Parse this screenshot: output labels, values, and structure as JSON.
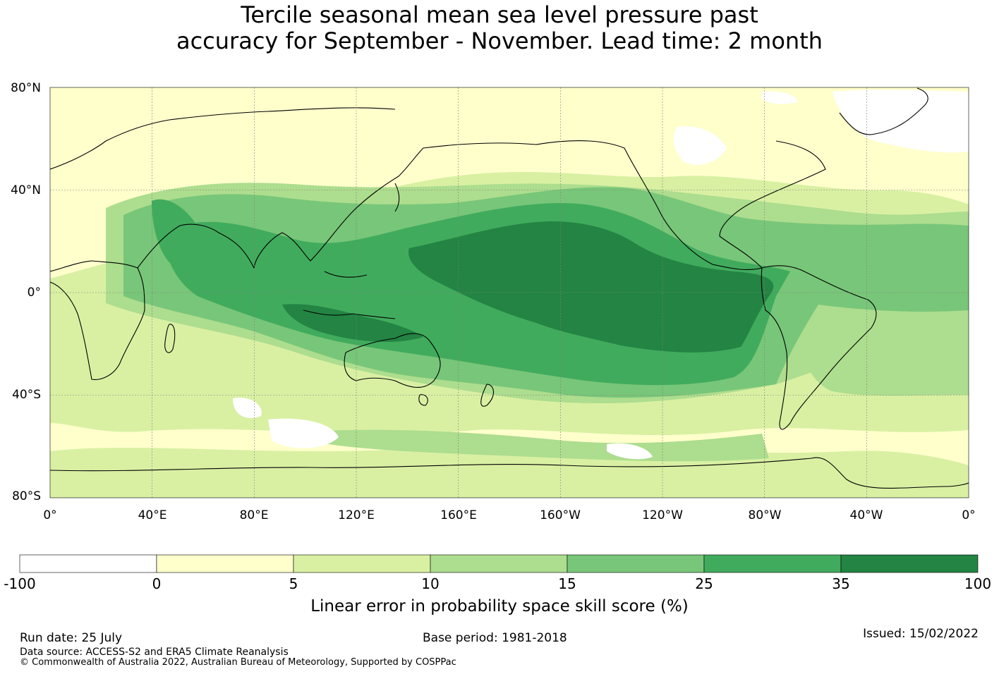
{
  "title": {
    "line1": "Tercile seasonal mean sea level pressure past",
    "line2": "accuracy for September - November. Lead time: 2 month"
  },
  "map": {
    "lat_labels": [
      "80°N",
      "40°N",
      "0°",
      "40°S",
      "80°S"
    ],
    "lon_labels": [
      "0°",
      "40°E",
      "80°E",
      "120°E",
      "160°E",
      "160°W",
      "120°W",
      "80°W",
      "40°W",
      "0°"
    ],
    "ocean_color": "#ffffcc",
    "land_outline_color": "#000000",
    "gridline_color": "#808080"
  },
  "colorbar": {
    "title": "Linear error in probability space skill score (%)",
    "bounds": [
      "-100",
      "0",
      "5",
      "10",
      "15",
      "25",
      "35",
      "100"
    ],
    "colors": [
      "#ffffff",
      "#ffffcc",
      "#d9f0a3",
      "#addd8e",
      "#78c679",
      "#41ab5d",
      "#238443"
    ]
  },
  "footer": {
    "run_date": "Run date: 25 July",
    "base_period": "Base period: 1981-2018",
    "issued": "Issued: 15/02/2022",
    "data_source": "Data source: ACCESS-S2 and ERA5 Climate Reanalysis",
    "copyright": "© Commonwealth of Australia 2022, Australian Bureau of Meteorology, Supported by COSPPac"
  }
}
